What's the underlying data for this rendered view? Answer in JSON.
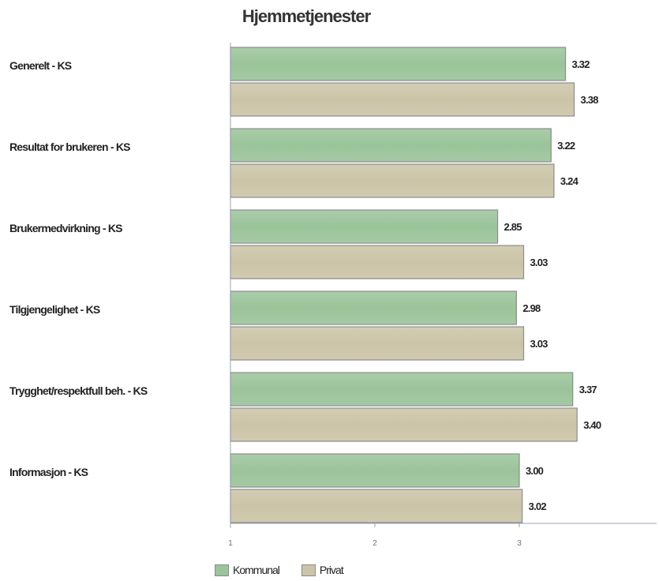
{
  "chart_data": {
    "type": "bar",
    "orientation": "horizontal",
    "title": "Hjemmetjenester",
    "categories": [
      "Generelt - KS",
      "Resultat for brukeren - KS",
      "Brukermedvirkning - KS",
      "Tilgjengelighet - KS",
      "Trygghet/respektfull beh. - KS",
      "Informasjon - KS"
    ],
    "series": [
      {
        "name": "Kommunal",
        "color": "#9bc49a",
        "values": [
          3.32,
          3.22,
          2.85,
          2.98,
          3.37,
          3.0
        ],
        "labels": [
          "3.32",
          "3.22",
          "2.85",
          "2.98",
          "3.37",
          "3.00"
        ]
      },
      {
        "name": "Privat",
        "color": "#cbc4a7",
        "values": [
          3.38,
          3.24,
          3.03,
          3.03,
          3.4,
          3.02
        ],
        "labels": [
          "3.38",
          "3.24",
          "3.03",
          "3.03",
          "3.40",
          "3.02"
        ]
      }
    ],
    "x_ticks": [
      "1",
      "2",
      "3"
    ],
    "xlim": [
      1,
      4
    ],
    "legend": "bottom",
    "grid": false
  }
}
